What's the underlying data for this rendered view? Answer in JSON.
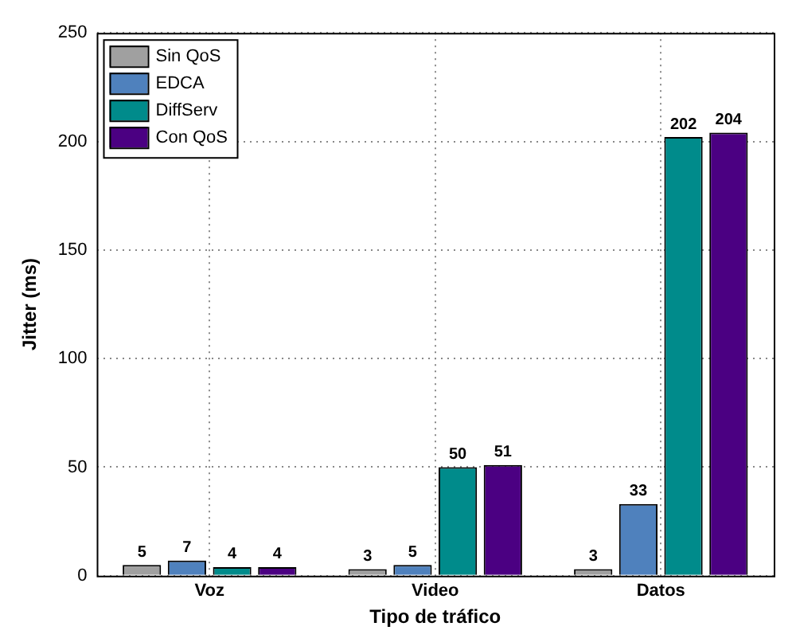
{
  "chart_data": {
    "type": "bar",
    "xlabel": "Tipo de tráfico",
    "ylabel": "Jitter (ms)",
    "categories": [
      "Voz",
      "Video",
      "Datos"
    ],
    "series": [
      {
        "name": "Sin QoS",
        "color": "#a0a0a0",
        "values": [
          5,
          3,
          3
        ]
      },
      {
        "name": "EDCA",
        "color": "#4f81bd",
        "values": [
          7,
          5,
          33
        ]
      },
      {
        "name": "DiffServ",
        "color": "#008b8b",
        "values": [
          4,
          50,
          202
        ]
      },
      {
        "name": "Con QoS",
        "color": "#4b0082",
        "values": [
          4,
          51,
          204
        ]
      }
    ],
    "ylim": [
      0,
      250
    ],
    "yticks": [
      0,
      50,
      100,
      150,
      200,
      250
    ],
    "grid": true,
    "legend": "top left",
    "data_labels": true
  }
}
